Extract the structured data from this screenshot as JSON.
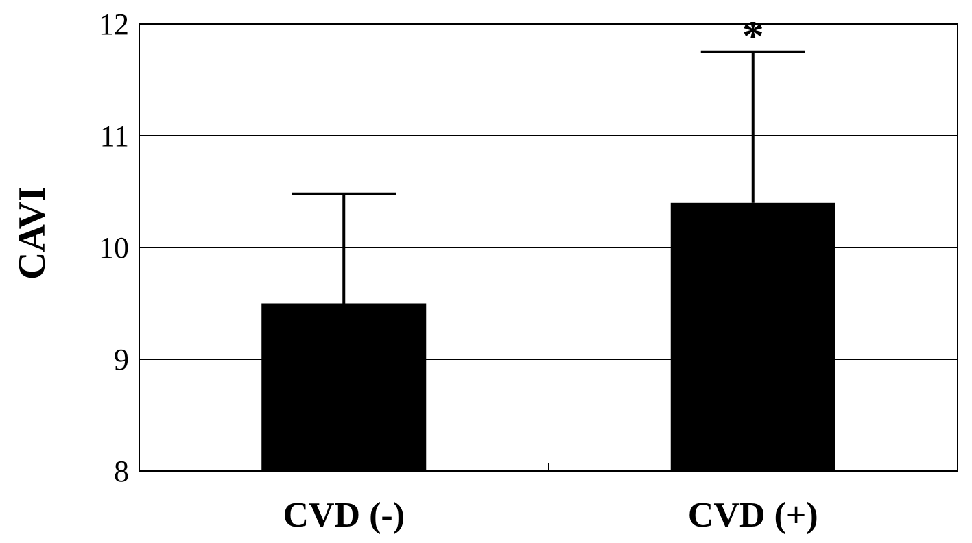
{
  "chart_data": {
    "type": "bar",
    "categories": [
      "CVD (-)",
      "CVD (+)"
    ],
    "values": [
      9.5,
      10.4
    ],
    "error_upper": [
      10.48,
      11.75
    ],
    "annotations": [
      "",
      "*"
    ],
    "ylabel": "CAVI",
    "xlabel": "",
    "ylim": [
      8,
      12
    ],
    "yticks": [
      "8",
      "9",
      "10",
      "11",
      "12"
    ],
    "grid": true,
    "bar_color": "#000000"
  }
}
